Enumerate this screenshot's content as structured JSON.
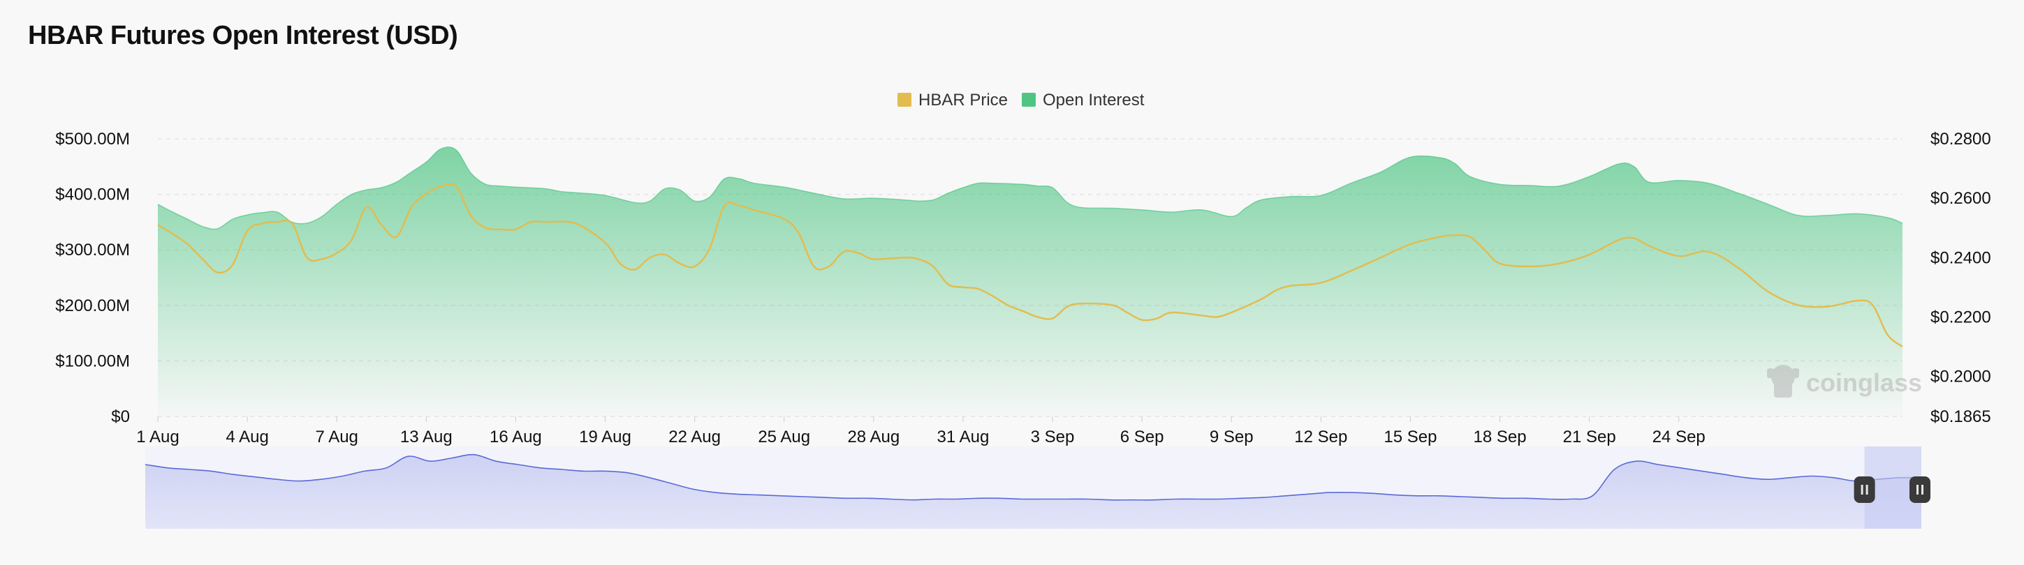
{
  "chart_data": {
    "type": "area",
    "title": "HBAR Futures Open Interest (USD)",
    "legend": {
      "placement": "top-center",
      "items": [
        {
          "label": "HBAR Price",
          "color": "#e2bc4e"
        },
        {
          "label": "Open Interest",
          "color": "#4fc584"
        }
      ]
    },
    "x_ticks": [
      "1 Aug",
      "4 Aug",
      "7 Aug",
      "13 Aug",
      "16 Aug",
      "19 Aug",
      "22 Aug",
      "25 Aug",
      "28 Aug",
      "31 Aug",
      "3 Sep",
      "6 Sep",
      "9 Sep",
      "12 Sep",
      "15 Sep",
      "18 Sep",
      "21 Sep",
      "24 Sep"
    ],
    "y_left": {
      "ticks": [
        "$0",
        "$100.00M",
        "$200.00M",
        "$300.00M",
        "$400.00M",
        "$500.00M"
      ],
      "tick_values": [
        0,
        100,
        200,
        300,
        400,
        500
      ],
      "unit": "million USD",
      "range": [
        0,
        500
      ]
    },
    "y_right": {
      "ticks": [
        "$0.1865",
        "$0.2000",
        "$0.2200",
        "$0.2400",
        "$0.2600",
        "$0.2800"
      ],
      "tick_values": [
        0.1865,
        0.2,
        0.22,
        0.24,
        0.26,
        0.28
      ],
      "range": [
        0.1865,
        0.28
      ]
    },
    "grid": "horizontal dashed",
    "series": [
      {
        "name": "Open Interest",
        "axis": "left",
        "color": "#4fc584",
        "points": [
          [
            0,
            382
          ],
          [
            0.5,
            368
          ],
          [
            1,
            355
          ],
          [
            1.5,
            342
          ],
          [
            2,
            338
          ],
          [
            2.5,
            355
          ],
          [
            3,
            363
          ],
          [
            3.5,
            367
          ],
          [
            4,
            368
          ],
          [
            4.5,
            350
          ],
          [
            5,
            348
          ],
          [
            5.5,
            360
          ],
          [
            6,
            382
          ],
          [
            6.5,
            400
          ],
          [
            7,
            408
          ],
          [
            7.5,
            412
          ],
          [
            8,
            422
          ],
          [
            8.5,
            440
          ],
          [
            9,
            458
          ],
          [
            9.5,
            482
          ],
          [
            10,
            480
          ],
          [
            10.5,
            438
          ],
          [
            11,
            418
          ],
          [
            11.5,
            415
          ],
          [
            12,
            413
          ],
          [
            13,
            410
          ],
          [
            13.5,
            405
          ],
          [
            14,
            403
          ],
          [
            15,
            398
          ],
          [
            16,
            385
          ],
          [
            16.5,
            388
          ],
          [
            17,
            410
          ],
          [
            17.5,
            408
          ],
          [
            18,
            388
          ],
          [
            18.5,
            395
          ],
          [
            19,
            428
          ],
          [
            19.5,
            428
          ],
          [
            20,
            420
          ],
          [
            21,
            413
          ],
          [
            22,
            402
          ],
          [
            23,
            392
          ],
          [
            24,
            393
          ],
          [
            25,
            390
          ],
          [
            25.5,
            388
          ],
          [
            26,
            390
          ],
          [
            26.5,
            402
          ],
          [
            27,
            412
          ],
          [
            27.5,
            420
          ],
          [
            28,
            420
          ],
          [
            29,
            418
          ],
          [
            29.5,
            415
          ],
          [
            30,
            412
          ],
          [
            30.5,
            385
          ],
          [
            31,
            376
          ],
          [
            32,
            375
          ],
          [
            33,
            372
          ],
          [
            34,
            368
          ],
          [
            35,
            372
          ],
          [
            36,
            360
          ],
          [
            36.5,
            376
          ],
          [
            37,
            390
          ],
          [
            38,
            396
          ],
          [
            39,
            398
          ],
          [
            40,
            420
          ],
          [
            41,
            440
          ],
          [
            42,
            467
          ],
          [
            43,
            466
          ],
          [
            43.5,
            455
          ],
          [
            44,
            432
          ],
          [
            45,
            418
          ],
          [
            46,
            416
          ],
          [
            47,
            415
          ],
          [
            48,
            432
          ],
          [
            49,
            455
          ],
          [
            49.5,
            450
          ],
          [
            50,
            422
          ],
          [
            51,
            425
          ],
          [
            52,
            420
          ],
          [
            53,
            402
          ],
          [
            54,
            382
          ],
          [
            55,
            362
          ],
          [
            56,
            362
          ],
          [
            57,
            365
          ],
          [
            58,
            358
          ],
          [
            58.5,
            348
          ]
        ]
      },
      {
        "name": "HBAR Price",
        "axis": "right",
        "color": "#e2bc4e",
        "points": [
          [
            0,
            0.251
          ],
          [
            0.5,
            0.248
          ],
          [
            1,
            0.2445
          ],
          [
            1.5,
            0.2395
          ],
          [
            2,
            0.235
          ],
          [
            2.5,
            0.2375
          ],
          [
            3,
            0.249
          ],
          [
            3.5,
            0.2515
          ],
          [
            4,
            0.252
          ],
          [
            4.5,
            0.2515
          ],
          [
            5,
            0.24
          ],
          [
            5.5,
            0.2395
          ],
          [
            6,
            0.2415
          ],
          [
            6.5,
            0.246
          ],
          [
            7,
            0.257
          ],
          [
            7.5,
            0.251
          ],
          [
            8,
            0.247
          ],
          [
            8.5,
            0.257
          ],
          [
            9,
            0.2615
          ],
          [
            9.5,
            0.264
          ],
          [
            10,
            0.264
          ],
          [
            10.5,
            0.254
          ],
          [
            11,
            0.25
          ],
          [
            11.5,
            0.2495
          ],
          [
            12,
            0.2495
          ],
          [
            12.5,
            0.252
          ],
          [
            13,
            0.252
          ],
          [
            14,
            0.2515
          ],
          [
            15,
            0.245
          ],
          [
            15.5,
            0.238
          ],
          [
            16,
            0.236
          ],
          [
            16.5,
            0.24
          ],
          [
            17,
            0.241
          ],
          [
            17.5,
            0.238
          ],
          [
            18,
            0.237
          ],
          [
            18.5,
            0.243
          ],
          [
            19,
            0.2575
          ],
          [
            19.5,
            0.2575
          ],
          [
            20,
            0.256
          ],
          [
            21,
            0.253
          ],
          [
            21.5,
            0.248
          ],
          [
            22,
            0.237
          ],
          [
            22.5,
            0.237
          ],
          [
            23,
            0.242
          ],
          [
            23.5,
            0.2415
          ],
          [
            24,
            0.2395
          ],
          [
            25,
            0.24
          ],
          [
            25.5,
            0.2395
          ],
          [
            26,
            0.237
          ],
          [
            26.5,
            0.231
          ],
          [
            27,
            0.23
          ],
          [
            27.5,
            0.2295
          ],
          [
            28,
            0.227
          ],
          [
            28.5,
            0.224
          ],
          [
            29,
            0.222
          ],
          [
            29.5,
            0.22
          ],
          [
            30,
            0.2195
          ],
          [
            30.5,
            0.2235
          ],
          [
            31,
            0.2245
          ],
          [
            32,
            0.224
          ],
          [
            32.5,
            0.2215
          ],
          [
            33,
            0.219
          ],
          [
            33.5,
            0.2195
          ],
          [
            34,
            0.2215
          ],
          [
            35,
            0.2205
          ],
          [
            35.5,
            0.22
          ],
          [
            36,
            0.2215
          ],
          [
            37,
            0.226
          ],
          [
            37.5,
            0.229
          ],
          [
            38,
            0.2305
          ],
          [
            39,
            0.2315
          ],
          [
            40,
            0.2355
          ],
          [
            41,
            0.24
          ],
          [
            42,
            0.2445
          ],
          [
            43,
            0.247
          ],
          [
            43.5,
            0.2475
          ],
          [
            44,
            0.247
          ],
          [
            44.5,
            0.2425
          ],
          [
            45,
            0.238
          ],
          [
            46,
            0.237
          ],
          [
            47,
            0.238
          ],
          [
            48,
            0.241
          ],
          [
            49,
            0.246
          ],
          [
            49.5,
            0.2465
          ],
          [
            50,
            0.244
          ],
          [
            51,
            0.2405
          ],
          [
            52,
            0.242
          ],
          [
            53,
            0.2365
          ],
          [
            54,
            0.2285
          ],
          [
            55,
            0.224
          ],
          [
            56,
            0.2235
          ],
          [
            57,
            0.2255
          ],
          [
            57.5,
            0.224
          ],
          [
            58,
            0.214
          ],
          [
            58.5,
            0.21
          ]
        ]
      }
    ]
  },
  "navigator": {
    "range_selected": [
      0.968,
      1.0
    ],
    "handle_left_icon": "pause-icon",
    "handle_right_icon": "pause-icon",
    "series": [
      0.78,
      0.74,
      0.72,
      0.7,
      0.66,
      0.63,
      0.6,
      0.58,
      0.6,
      0.64,
      0.7,
      0.74,
      0.88,
      0.82,
      0.86,
      0.9,
      0.82,
      0.78,
      0.74,
      0.72,
      0.7,
      0.7,
      0.68,
      0.62,
      0.55,
      0.48,
      0.44,
      0.42,
      0.41,
      0.4,
      0.39,
      0.38,
      0.37,
      0.37,
      0.36,
      0.35,
      0.36,
      0.36,
      0.37,
      0.37,
      0.36,
      0.36,
      0.36,
      0.36,
      0.35,
      0.35,
      0.35,
      0.36,
      0.36,
      0.36,
      0.37,
      0.38,
      0.4,
      0.42,
      0.44,
      0.44,
      0.43,
      0.41,
      0.4,
      0.4,
      0.39,
      0.38,
      0.37,
      0.37,
      0.36,
      0.36,
      0.4,
      0.72,
      0.82,
      0.78,
      0.74,
      0.7,
      0.66,
      0.62,
      0.6,
      0.62,
      0.64,
      0.62,
      0.58,
      0.6,
      0.62,
      0.62
    ]
  },
  "watermark": {
    "text": "coinglass",
    "icon": "coinglass-logo-icon"
  }
}
